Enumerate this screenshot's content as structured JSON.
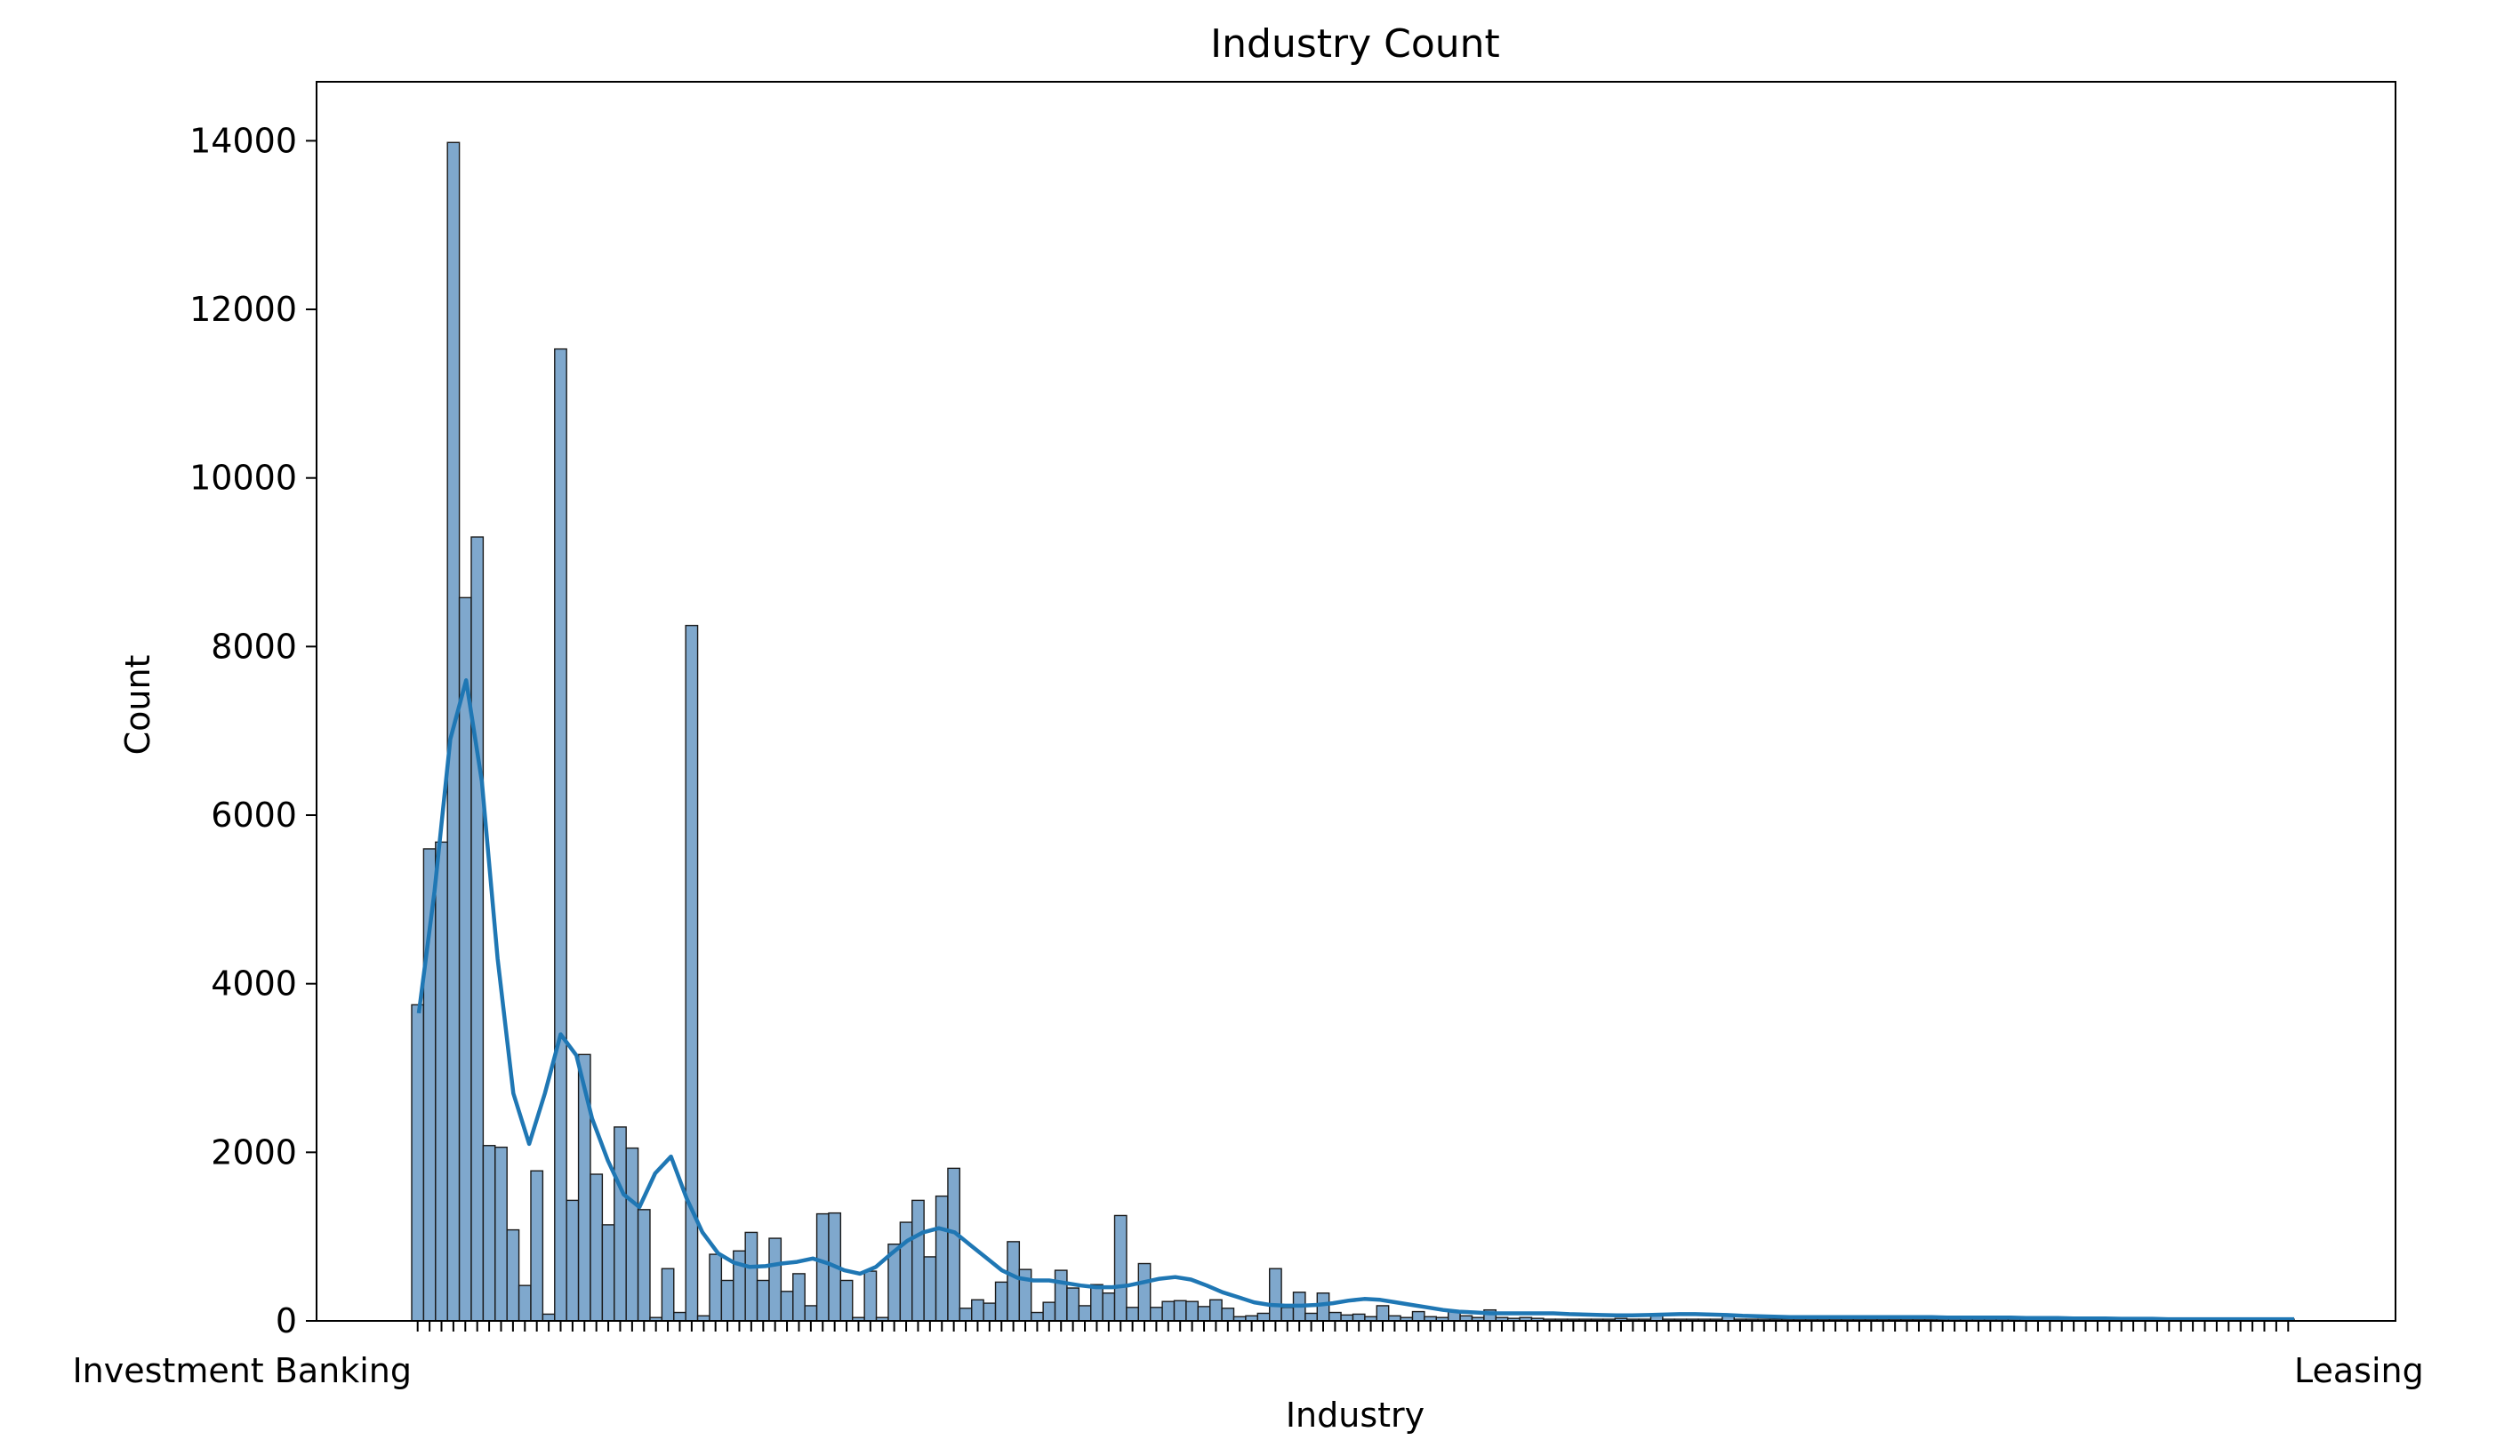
{
  "chart_data": {
    "type": "bar",
    "title": "Industry Count",
    "xlabel": "Industry",
    "ylabel": "Count",
    "ylim": [
      0,
      14700
    ],
    "yticks": [
      0,
      2000,
      4000,
      6000,
      8000,
      10000,
      12000,
      14000
    ],
    "x_first_label": "Investment Banking",
    "x_last_label": "Leasing",
    "bar_color": "#7fa8cd",
    "bar_edge_color": "#1a1a1a",
    "kde_color": "#1f77b4",
    "grid": false,
    "legend": "none",
    "values": [
      3750,
      5600,
      5680,
      13980,
      8580,
      9300,
      2080,
      2060,
      1080,
      420,
      1780,
      80,
      11530,
      1430,
      3160,
      1740,
      1140,
      2300,
      2050,
      1320,
      40,
      620,
      100,
      8250,
      60,
      790,
      480,
      830,
      1050,
      480,
      980,
      350,
      560,
      180,
      1270,
      1280,
      480,
      40,
      590,
      40,
      910,
      1170,
      1430,
      760,
      1480,
      1810,
      150,
      250,
      210,
      460,
      940,
      610,
      100,
      220,
      600,
      390,
      180,
      430,
      330,
      1250,
      160,
      680,
      160,
      230,
      240,
      230,
      170,
      250,
      150,
      50,
      60,
      90,
      620,
      160,
      340,
      90,
      330,
      100,
      70,
      80,
      50,
      180,
      60,
      40,
      110,
      50,
      40,
      120,
      60,
      40,
      130,
      40,
      30,
      40,
      30,
      20,
      20,
      20,
      20,
      20,
      20,
      30,
      20,
      20,
      60,
      20,
      20,
      20,
      20,
      20,
      60,
      20,
      20,
      20,
      20,
      20,
      20,
      20,
      20,
      20,
      20,
      20,
      20,
      20,
      20,
      20,
      20,
      20,
      20,
      20,
      20,
      20,
      20,
      20,
      20,
      20,
      20,
      20,
      20,
      20,
      20,
      20,
      20,
      20,
      20,
      20,
      20,
      20,
      20,
      20,
      20,
      20,
      20,
      20,
      20,
      20,
      20,
      20
    ],
    "kde": [
      3650,
      5100,
      6900,
      7600,
      6400,
      4300,
      2700,
      2100,
      2700,
      3400,
      3150,
      2400,
      1900,
      1500,
      1350,
      1750,
      1950,
      1450,
      1050,
      800,
      690,
      640,
      650,
      680,
      700,
      740,
      680,
      600,
      560,
      640,
      800,
      950,
      1050,
      1100,
      1050,
      900,
      750,
      600,
      510,
      480,
      480,
      450,
      420,
      400,
      400,
      420,
      460,
      500,
      520,
      490,
      420,
      340,
      280,
      220,
      190,
      180,
      180,
      190,
      210,
      240,
      260,
      250,
      220,
      190,
      160,
      130,
      110,
      100,
      90,
      90,
      90,
      90,
      90,
      80,
      75,
      70,
      65,
      65,
      70,
      75,
      80,
      80,
      75,
      70,
      60,
      55,
      50,
      45,
      45,
      45,
      45,
      45,
      45,
      45,
      45,
      45,
      45,
      40,
      40,
      40,
      40,
      40,
      35,
      35,
      35,
      30,
      30,
      30,
      25,
      25,
      25,
      20,
      20,
      20,
      20,
      20,
      20,
      20,
      20,
      20
    ]
  }
}
